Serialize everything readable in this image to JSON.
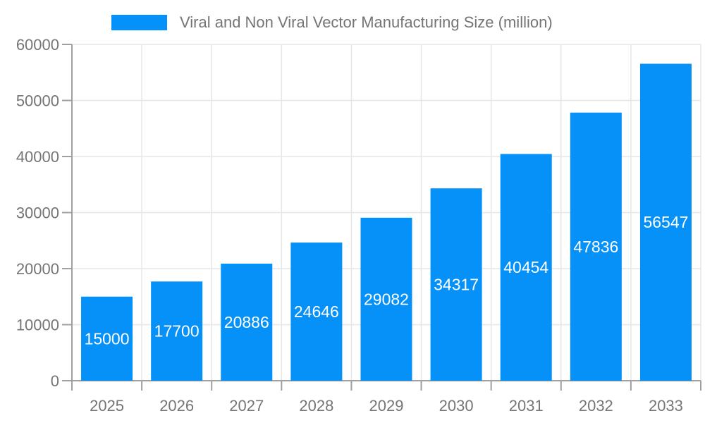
{
  "chart_data": {
    "type": "bar",
    "title": "Viral and Non Viral Vector Manufacturing Size (million)",
    "categories": [
      "2025",
      "2026",
      "2027",
      "2028",
      "2029",
      "2030",
      "2031",
      "2032",
      "2033"
    ],
    "values": [
      15000,
      17700,
      20886,
      24646,
      29082,
      34317,
      40454,
      47836,
      56547
    ],
    "xlabel": "",
    "ylabel": "",
    "ylim": [
      0,
      60000
    ],
    "yticks": [
      0,
      10000,
      20000,
      30000,
      40000,
      50000,
      60000
    ],
    "grid": true,
    "legend_position": "top",
    "bar_color": "#0591f8",
    "value_label_color": "#ffffff",
    "tick_label_color": "#757575",
    "axis_color": "#a0a0a0",
    "grid_color": "#e6e6e6",
    "background_color": "#ffffff"
  }
}
